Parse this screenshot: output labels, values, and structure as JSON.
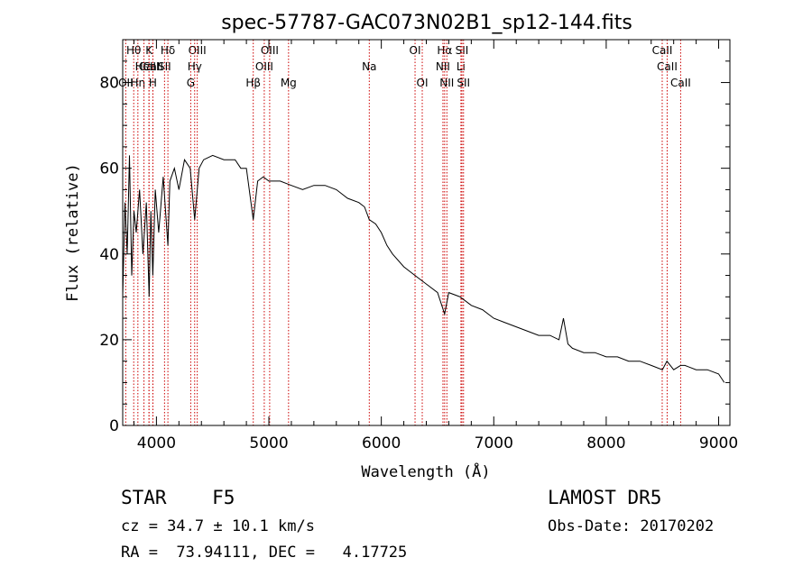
{
  "chart_data": {
    "type": "line",
    "title": "spec-57787-GAC073N02B1_sp12-144.fits",
    "xlabel": "Wavelength (Å)",
    "ylabel": "Flux (relative)",
    "xlim": [
      3700,
      9100
    ],
    "ylim": [
      0,
      90
    ],
    "xticks": [
      "4000",
      "5000",
      "6000",
      "7000",
      "8000",
      "9000"
    ],
    "yticks": [
      "0",
      "20",
      "40",
      "60",
      "80"
    ],
    "grid": false,
    "series": [
      {
        "x": [
          3700,
          3720,
          3740,
          3760,
          3780,
          3800,
          3820,
          3850,
          3880,
          3910,
          3935,
          3950,
          3968,
          3990,
          4020,
          4060,
          4102,
          4120,
          4160,
          4200,
          4250,
          4300,
          4340,
          4380,
          4420,
          4500,
          4600,
          4700,
          4750,
          4800,
          4861,
          4900,
          4950,
          5000,
          5100,
          5200,
          5300,
          5400,
          5500,
          5600,
          5700,
          5800,
          5850,
          5893,
          5950,
          6000,
          6050,
          6100,
          6200,
          6300,
          6400,
          6500,
          6563,
          6600,
          6700,
          6800,
          6900,
          7000,
          7100,
          7200,
          7300,
          7400,
          7500,
          7580,
          7620,
          7660,
          7700,
          7800,
          7900,
          8000,
          8100,
          8200,
          8300,
          8400,
          8500,
          8540,
          8600,
          8662,
          8700,
          8800,
          8900,
          9000,
          9050
        ],
        "y": [
          30,
          52,
          40,
          63,
          35,
          50,
          45,
          55,
          40,
          52,
          30,
          50,
          35,
          55,
          45,
          58,
          42,
          57,
          60,
          55,
          62,
          60,
          48,
          60,
          62,
          63,
          62,
          62,
          60,
          60,
          48,
          57,
          58,
          57,
          57,
          56,
          55,
          56,
          56,
          55,
          53,
          52,
          51,
          48,
          47,
          45,
          42,
          40,
          37,
          35,
          33,
          31,
          26,
          31,
          30,
          28,
          27,
          25,
          24,
          23,
          22,
          21,
          21,
          20,
          25,
          19,
          18,
          17,
          17,
          16,
          16,
          15,
          15,
          14,
          13,
          15,
          13,
          14,
          14,
          13,
          13,
          12,
          10
        ],
        "color": "#000000"
      }
    ],
    "line_markers": [
      {
        "label": "CaII",
        "wavelength": 3934,
        "row": 1
      },
      {
        "label": "CaII",
        "wavelength": 3969,
        "row": 1
      },
      {
        "label": "Hθ",
        "wavelength": 3798,
        "row": 0
      },
      {
        "label": "OII",
        "wavelength": 3727,
        "row": 2
      },
      {
        "label": "Hη",
        "wavelength": 3835,
        "row": 2
      },
      {
        "label": "HeI",
        "wavelength": 3889,
        "row": 1
      },
      {
        "label": "K",
        "wavelength": 3934,
        "row": 0
      },
      {
        "label": "H",
        "wavelength": 3968,
        "row": 2
      },
      {
        "label": "Hδ",
        "wavelength": 4102,
        "row": 0
      },
      {
        "label": "SII",
        "wavelength": 4072,
        "row": 1
      },
      {
        "label": "OIII",
        "wavelength": 4363,
        "row": 0
      },
      {
        "label": "Hγ",
        "wavelength": 4340,
        "row": 1
      },
      {
        "label": "G",
        "wavelength": 4305,
        "row": 2
      },
      {
        "label": "Hβ",
        "wavelength": 4861,
        "row": 2
      },
      {
        "label": "OIII",
        "wavelength": 5007,
        "row": 0
      },
      {
        "label": "OIII",
        "wavelength": 4959,
        "row": 1
      },
      {
        "label": "Mg",
        "wavelength": 5175,
        "row": 2
      },
      {
        "label": "Na",
        "wavelength": 5893,
        "row": 1
      },
      {
        "label": "OI",
        "wavelength": 6300,
        "row": 0
      },
      {
        "label": "OI",
        "wavelength": 6364,
        "row": 2
      },
      {
        "label": "Hα",
        "wavelength": 6563,
        "row": 0
      },
      {
        "label": "NII",
        "wavelength": 6548,
        "row": 1
      },
      {
        "label": "NII",
        "wavelength": 6583,
        "row": 2
      },
      {
        "label": "SII",
        "wavelength": 6717,
        "row": 0
      },
      {
        "label": "Li",
        "wavelength": 6708,
        "row": 1
      },
      {
        "label": "SII",
        "wavelength": 6731,
        "row": 2
      },
      {
        "label": "CaII",
        "wavelength": 8498,
        "row": 0
      },
      {
        "label": "CaII",
        "wavelength": 8542,
        "row": 1
      },
      {
        "label": "CaII",
        "wavelength": 8662,
        "row": 2
      }
    ]
  },
  "info": {
    "class_label": "STAR    F5",
    "velocity": "cz = 34.7 ± 10.1 km/s",
    "coords": "RA =  73.94111, DEC =   4.17725",
    "survey": "LAMOST DR5",
    "obs_date": "Obs-Date: 20170202"
  },
  "colors": {
    "spectrum": "#000000",
    "line_markers": "#cc0000"
  }
}
